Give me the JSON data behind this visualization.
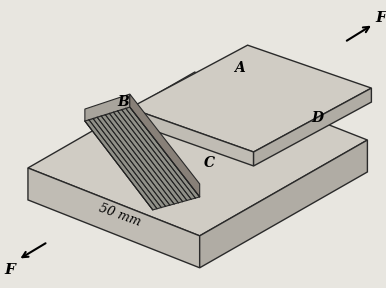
{
  "bg_color": "#e8e6e0",
  "pc_top": "#d0ccc4",
  "pc_side": "#b0aca4",
  "pc_front": "#c0bcb4",
  "ec": "#2a2a2a",
  "weld_top_color": "#a8a49c",
  "weld_face_color": "#909088",
  "weld_side_color": "#888078",
  "weld_line_color": "#2a2a2a",
  "text_color": "#000000",
  "label_A": "A",
  "label_B": "B",
  "label_C": "C",
  "label_D": "D",
  "label_F": "F",
  "label_50mm": "50 mm",
  "font_size_labels": 10,
  "font_size_F": 11,
  "font_size_50mm": 9,
  "plate_lw": 1.0,
  "weld_lw": 0.8
}
